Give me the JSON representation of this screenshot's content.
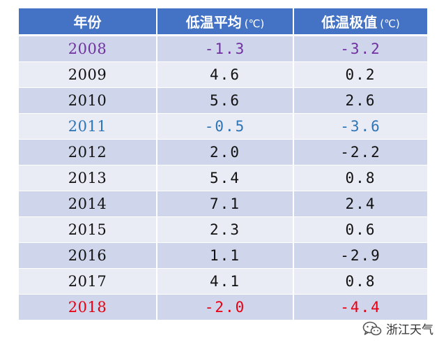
{
  "table": {
    "headers": {
      "year": "年份",
      "avg_low": "低温平均",
      "avg_low_unit": "(℃)",
      "min_low": "低温极值",
      "min_low_unit": "(℃)"
    },
    "rows": [
      {
        "year": "2008",
        "avg_low": "-1.3",
        "min_low": "-3.2",
        "color": "#7030a0"
      },
      {
        "year": "2009",
        "avg_low": "4.6",
        "min_low": "0.2",
        "color": "#111111"
      },
      {
        "year": "2010",
        "avg_low": "5.6",
        "min_low": "2.6",
        "color": "#111111"
      },
      {
        "year": "2011",
        "avg_low": "-0.5",
        "min_low": "-3.6",
        "color": "#2e75b6"
      },
      {
        "year": "2012",
        "avg_low": "2.0",
        "min_low": "-2.2",
        "color": "#111111"
      },
      {
        "year": "2013",
        "avg_low": "5.4",
        "min_low": "0.8",
        "color": "#111111"
      },
      {
        "year": "2014",
        "avg_low": "7.1",
        "min_low": "2.4",
        "color": "#111111"
      },
      {
        "year": "2015",
        "avg_low": "2.3",
        "min_low": "0.6",
        "color": "#111111"
      },
      {
        "year": "2016",
        "avg_low": "1.1",
        "min_low": "-2.9",
        "color": "#111111"
      },
      {
        "year": "2017",
        "avg_low": "4.1",
        "min_low": "0.8",
        "color": "#111111"
      },
      {
        "year": "2018",
        "avg_low": "-2.0",
        "min_low": "-4.4",
        "color": "#e60012"
      }
    ]
  },
  "watermark": {
    "text": "浙江天气",
    "icon": "wechat-icon"
  },
  "colors": {
    "header_bg": "#4472c4",
    "row_dark": "#cfd5ea",
    "row_light": "#e9ebf5"
  }
}
